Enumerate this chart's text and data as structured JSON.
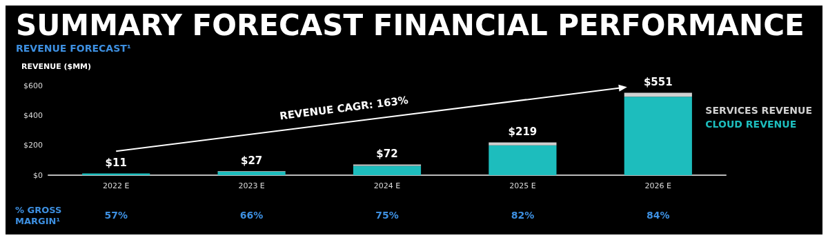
{
  "chart_data": {
    "type": "bar",
    "title": "SUMMARY FORECAST FINANCIAL PERFORMANCE",
    "subtitle": "REVENUE FORECAST¹",
    "ylabel": "REVENUE ($MM)",
    "categories": [
      "2022 E",
      "2023 E",
      "2024 E",
      "2025 E",
      "2026 E"
    ],
    "stacked": true,
    "series": [
      {
        "name": "CLOUD REVENUE",
        "color": "#1dbdbd",
        "values": [
          11,
          23,
          62,
          200,
          525
        ]
      },
      {
        "name": "SERVICES REVENUE",
        "color": "#d0d0d0",
        "values": [
          null,
          4,
          10,
          19,
          26
        ]
      }
    ],
    "totals": [
      "$11",
      "$27",
      "$72",
      "$219",
      "$551"
    ],
    "ylim": [
      0,
      600
    ],
    "yticks": [
      {
        "value": 0,
        "label": "$0"
      },
      {
        "value": 200,
        "label": "$200"
      },
      {
        "value": 400,
        "label": "$400"
      },
      {
        "value": 600,
        "label": "$600"
      }
    ],
    "grid": false,
    "legend": "right",
    "annotations": [
      "REVENUE CAGR: 163%",
      "% GROSS MARGIN¹",
      "57%",
      "66%",
      "75%",
      "82%",
      "84%"
    ]
  }
}
